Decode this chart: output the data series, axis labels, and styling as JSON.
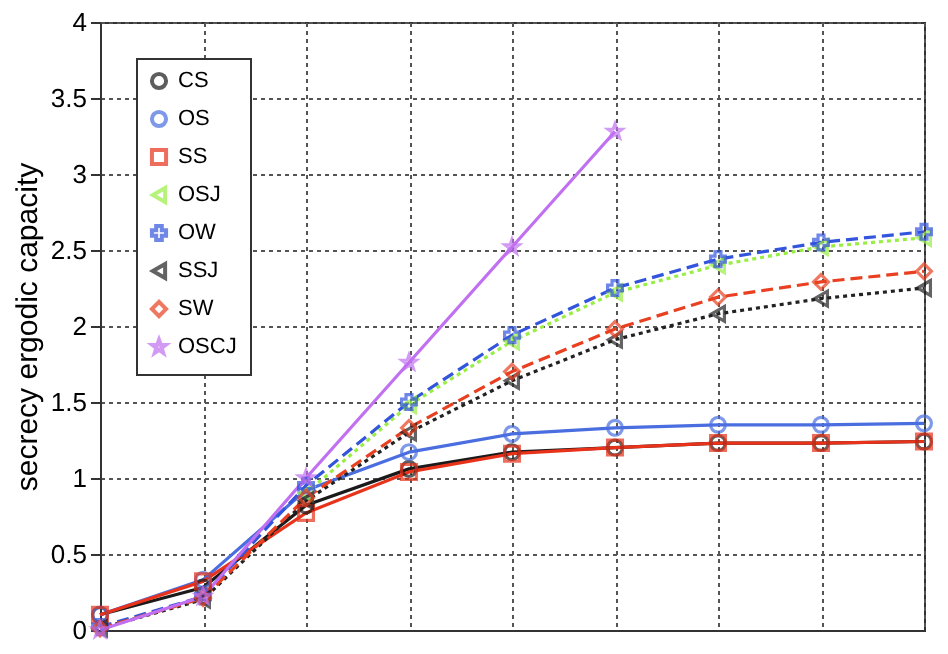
{
  "chart_data": {
    "type": "line",
    "ylabel": "secrecy ergodic capacity",
    "categories": [
      null,
      null,
      null,
      null,
      null,
      null,
      null,
      null,
      null
    ],
    "ylim": [
      0,
      4
    ],
    "yticks": [
      0,
      0.5,
      1,
      1.5,
      2,
      2.5,
      3,
      3.5,
      4
    ],
    "tick_labels": "y",
    "grid": true,
    "legend": "top left",
    "series": [
      {
        "name": "CS",
        "color": "#1a1a1a",
        "marker": "circle",
        "line_style": "solid",
        "values": [
          0.1,
          0.28,
          0.82,
          1.06,
          1.17,
          1.2,
          1.23,
          1.23,
          1.24
        ]
      },
      {
        "name": "OS",
        "color": "#4a6ee0",
        "marker": "circle",
        "line_style": "solid",
        "values": [
          0.1,
          0.33,
          0.92,
          1.17,
          1.29,
          1.33,
          1.35,
          1.35,
          1.36
        ]
      },
      {
        "name": "SS",
        "color": "#e8321a",
        "marker": "square",
        "line_style": "solid",
        "values": [
          0.1,
          0.32,
          0.77,
          1.04,
          1.16,
          1.2,
          1.23,
          1.23,
          1.24
        ]
      },
      {
        "name": "OSJ",
        "color": "#99ee44",
        "marker": "triangle",
        "line_style": "dotted",
        "values": [
          null,
          null,
          0.9,
          1.48,
          1.9,
          2.22,
          2.4,
          2.52,
          2.58
        ]
      },
      {
        "name": "OW",
        "color": "#3355dd",
        "marker": "cross",
        "line_style": "dashed",
        "values": [
          0.02,
          0.22,
          0.95,
          1.5,
          1.94,
          2.25,
          2.44,
          2.55,
          2.62
        ]
      },
      {
        "name": "SSJ",
        "color": "#222222",
        "marker": "triangle",
        "line_style": "dotted",
        "values": [
          0.01,
          0.2,
          0.85,
          1.3,
          1.64,
          1.91,
          2.08,
          2.18,
          2.25
        ]
      },
      {
        "name": "SW",
        "color": "#e84020",
        "marker": "diamond",
        "line_style": "dashed",
        "values": [
          0.01,
          0.21,
          0.87,
          1.33,
          1.7,
          1.98,
          2.19,
          2.29,
          2.36
        ]
      },
      {
        "name": "OSCJ",
        "color": "#c070f0",
        "marker": "star",
        "line_style": "solid",
        "values": [
          0.0,
          0.22,
          1.0,
          1.76,
          2.52,
          3.28,
          null,
          null,
          null
        ]
      }
    ]
  }
}
